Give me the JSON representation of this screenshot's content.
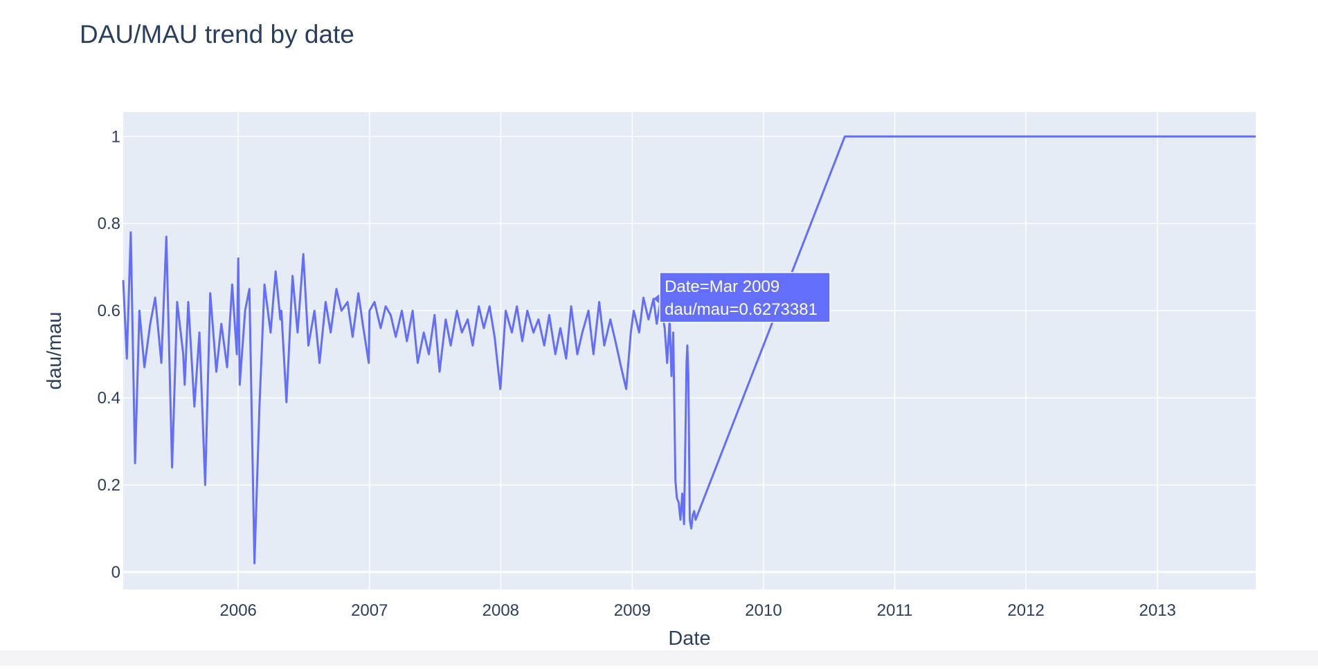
{
  "chart_data": {
    "type": "line",
    "title": "DAU/MAU trend by date",
    "xlabel": "Date",
    "ylabel": "dau/mau",
    "x_range": [
      "2005-02-15",
      "2013-10-01"
    ],
    "ylim": [
      -0.04,
      1.056
    ],
    "y_ticks": [
      0,
      0.2,
      0.4,
      0.6,
      0.8,
      1
    ],
    "y_tick_labels": [
      "0",
      "0.2",
      "0.4",
      "0.6",
      "0.8",
      "1"
    ],
    "x_ticks": [
      "2006-01-01",
      "2007-01-01",
      "2008-01-01",
      "2009-01-01",
      "2010-01-01",
      "2011-01-01",
      "2012-01-01",
      "2013-01-01"
    ],
    "x_tick_labels": [
      "2006",
      "2007",
      "2008",
      "2009",
      "2010",
      "2011",
      "2012",
      "2013"
    ],
    "grid": true,
    "legend": "none",
    "series": [
      {
        "color": "#636efa",
        "x": [
          "2005-02-15",
          "2005-02-25",
          "2005-03-08",
          "2005-03-20",
          "2005-04-01",
          "2005-04-15",
          "2005-05-01",
          "2005-05-15",
          "2005-06-01",
          "2005-06-15",
          "2005-07-01",
          "2005-07-15",
          "2005-08-01",
          "2005-08-05",
          "2005-08-15",
          "2005-09-01",
          "2005-09-15",
          "2005-10-01",
          "2005-10-15",
          "2005-11-01",
          "2005-11-15",
          "2005-12-01",
          "2005-12-15",
          "2005-12-28",
          "2006-01-01",
          "2006-01-05",
          "2006-01-20",
          "2006-02-01",
          "2006-02-15",
          "2006-03-01",
          "2006-03-15",
          "2006-04-01",
          "2006-04-15",
          "2006-04-28",
          "2006-05-01",
          "2006-05-15",
          "2006-06-01",
          "2006-06-15",
          "2006-07-01",
          "2006-07-15",
          "2006-08-01",
          "2006-08-15",
          "2006-09-01",
          "2006-09-15",
          "2006-10-01",
          "2006-10-15",
          "2006-11-01",
          "2006-11-15",
          "2006-12-01",
          "2006-12-15",
          "2006-12-30",
          "2007-01-01",
          "2007-01-15",
          "2007-02-01",
          "2007-02-15",
          "2007-03-01",
          "2007-03-15",
          "2007-04-01",
          "2007-04-15",
          "2007-05-01",
          "2007-05-15",
          "2007-06-01",
          "2007-06-15",
          "2007-07-01",
          "2007-07-15",
          "2007-08-01",
          "2007-08-15",
          "2007-09-01",
          "2007-09-15",
          "2007-10-01",
          "2007-10-15",
          "2007-11-01",
          "2007-11-15",
          "2007-12-01",
          "2007-12-15",
          "2007-12-31",
          "2008-01-15",
          "2008-02-01",
          "2008-02-15",
          "2008-03-01",
          "2008-03-15",
          "2008-04-01",
          "2008-04-15",
          "2008-05-01",
          "2008-05-15",
          "2008-06-01",
          "2008-06-15",
          "2008-07-01",
          "2008-07-15",
          "2008-08-01",
          "2008-08-15",
          "2008-09-01",
          "2008-09-15",
          "2008-10-01",
          "2008-10-15",
          "2008-11-01",
          "2008-11-15",
          "2008-12-01",
          "2008-12-15",
          "2008-12-28",
          "2009-01-05",
          "2009-01-20",
          "2009-02-01",
          "2009-02-15",
          "2009-03-01",
          "2009-03-10",
          "2009-03-20",
          "2009-04-01",
          "2009-04-08",
          "2009-04-15",
          "2009-04-20",
          "2009-04-25",
          "2009-05-01",
          "2009-05-05",
          "2009-05-10",
          "2009-05-15",
          "2009-05-20",
          "2009-05-25",
          "2009-06-01",
          "2009-06-03",
          "2009-06-06",
          "2009-06-10",
          "2009-06-14",
          "2009-06-18",
          "2009-06-22",
          "2009-06-26",
          "2010-08-15",
          "2013-10-01"
        ],
        "y": [
          0.67,
          0.49,
          0.78,
          0.25,
          0.6,
          0.47,
          0.57,
          0.63,
          0.48,
          0.77,
          0.24,
          0.62,
          0.5,
          0.43,
          0.62,
          0.38,
          0.55,
          0.2,
          0.64,
          0.46,
          0.57,
          0.47,
          0.66,
          0.5,
          0.72,
          0.43,
          0.6,
          0.65,
          0.02,
          0.38,
          0.66,
          0.55,
          0.69,
          0.58,
          0.6,
          0.39,
          0.68,
          0.55,
          0.73,
          0.52,
          0.6,
          0.48,
          0.62,
          0.55,
          0.65,
          0.6,
          0.62,
          0.54,
          0.64,
          0.56,
          0.48,
          0.6,
          0.62,
          0.56,
          0.61,
          0.59,
          0.54,
          0.6,
          0.53,
          0.6,
          0.48,
          0.55,
          0.5,
          0.59,
          0.46,
          0.58,
          0.52,
          0.6,
          0.55,
          0.58,
          0.52,
          0.61,
          0.56,
          0.61,
          0.54,
          0.42,
          0.6,
          0.55,
          0.61,
          0.53,
          0.6,
          0.55,
          0.58,
          0.52,
          0.59,
          0.5,
          0.56,
          0.49,
          0.61,
          0.5,
          0.55,
          0.6,
          0.5,
          0.62,
          0.52,
          0.58,
          0.53,
          0.47,
          0.42,
          0.55,
          0.6,
          0.55,
          0.63,
          0.58,
          0.6273381,
          0.57,
          0.62,
          0.56,
          0.48,
          0.58,
          0.45,
          0.55,
          0.21,
          0.17,
          0.16,
          0.12,
          0.18,
          0.11,
          0.48,
          0.52,
          0.45,
          0.12,
          0.1,
          0.13,
          0.14,
          0.12,
          1.0,
          1.0
        ]
      }
    ],
    "hover": {
      "line1": "Date=Mar 2009",
      "line2": "dau/mau=0.6273381",
      "x": "2009-03-01",
      "y": 0.6273381
    }
  }
}
